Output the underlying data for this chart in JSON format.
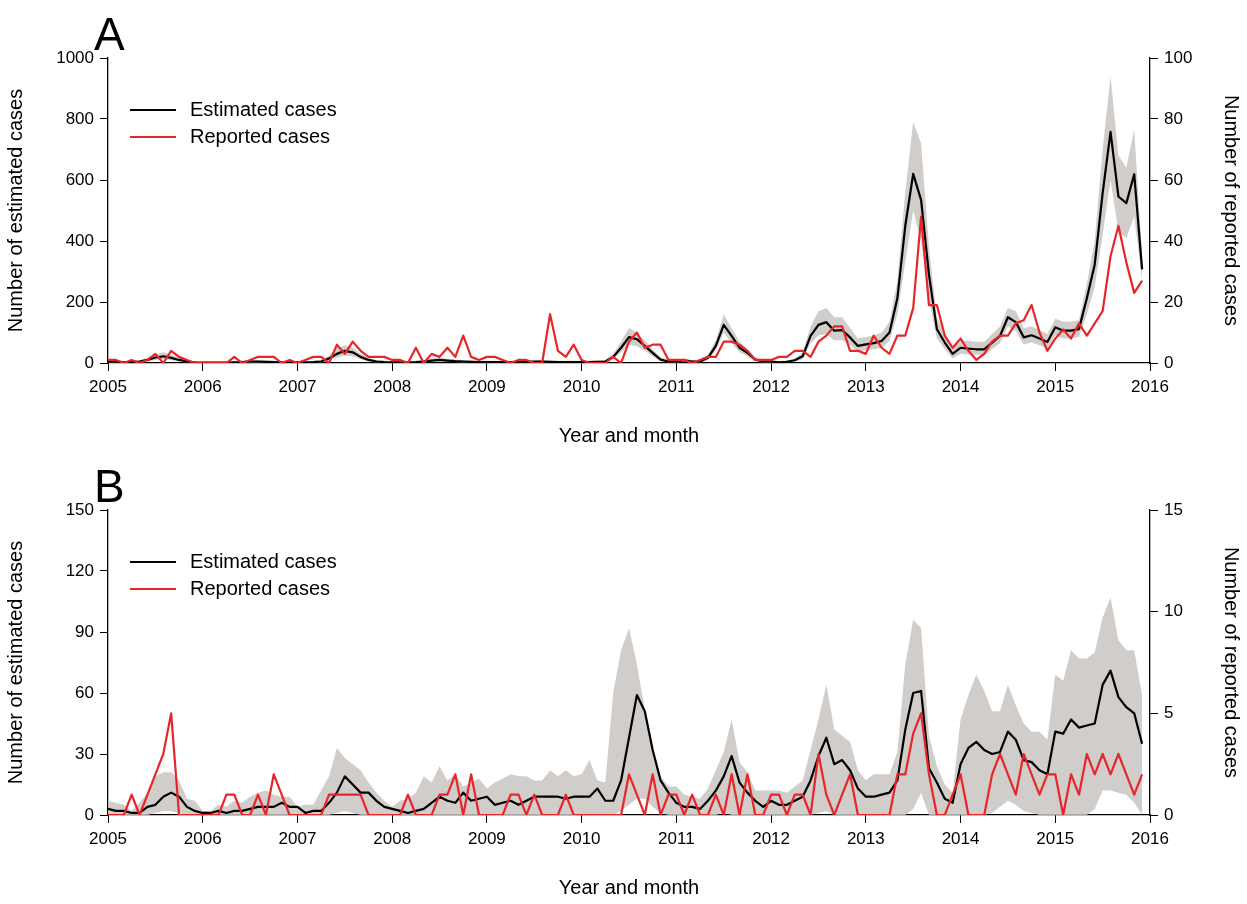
{
  "chart_data": [
    {
      "type": "line",
      "title": "A",
      "xlabel": "Year and month",
      "ylabel": "Number of estimated cases",
      "y2label": "Number of reported cases",
      "legend": "top left",
      "grid": false,
      "xlim": [
        "2005",
        "2016"
      ],
      "xticks": [
        "2005",
        "2006",
        "2007",
        "2008",
        "2009",
        "2010",
        "2011",
        "2012",
        "2013",
        "2014",
        "2015",
        "2016"
      ],
      "ylim": [
        0,
        1000
      ],
      "yticks": [
        0,
        200,
        400,
        600,
        800,
        1000
      ],
      "y2lim": [
        0,
        100
      ],
      "y2ticks": [
        0,
        20,
        40,
        60,
        80,
        100
      ],
      "x": [
        "2005-01",
        "2005-02",
        "2005-03",
        "2005-04",
        "2005-05",
        "2005-06",
        "2005-07",
        "2005-08",
        "2005-09",
        "2005-10",
        "2005-11",
        "2005-12",
        "2006-01",
        "2006-02",
        "2006-03",
        "2006-04",
        "2006-05",
        "2006-06",
        "2006-07",
        "2006-08",
        "2006-09",
        "2006-10",
        "2006-11",
        "2006-12",
        "2007-01",
        "2007-02",
        "2007-03",
        "2007-04",
        "2007-05",
        "2007-06",
        "2007-07",
        "2007-08",
        "2007-09",
        "2007-10",
        "2007-11",
        "2007-12",
        "2008-01",
        "2008-02",
        "2008-03",
        "2008-04",
        "2008-05",
        "2008-06",
        "2008-07",
        "2008-08",
        "2008-09",
        "2008-10",
        "2008-11",
        "2008-12",
        "2009-01",
        "2009-02",
        "2009-03",
        "2009-04",
        "2009-05",
        "2009-06",
        "2009-07",
        "2009-08",
        "2009-09",
        "2009-10",
        "2009-11",
        "2009-12",
        "2010-01",
        "2010-02",
        "2010-03",
        "2010-04",
        "2010-05",
        "2010-06",
        "2010-07",
        "2010-08",
        "2010-09",
        "2010-10",
        "2010-11",
        "2010-12",
        "2011-01",
        "2011-02",
        "2011-03",
        "2011-04",
        "2011-05",
        "2011-06",
        "2011-07",
        "2011-08",
        "2011-09",
        "2011-10",
        "2011-11",
        "2011-12",
        "2012-01",
        "2012-02",
        "2012-03",
        "2012-04",
        "2012-05",
        "2012-06",
        "2012-07",
        "2012-08",
        "2012-09",
        "2012-10",
        "2012-11",
        "2012-12",
        "2013-01",
        "2013-02",
        "2013-03",
        "2013-04",
        "2013-05",
        "2013-06",
        "2013-07",
        "2013-08",
        "2013-09",
        "2013-10",
        "2013-11",
        "2013-12",
        "2014-01",
        "2014-02",
        "2014-03",
        "2014-04",
        "2014-05",
        "2014-06",
        "2014-07",
        "2014-08",
        "2014-09",
        "2014-10",
        "2014-11",
        "2014-12",
        "2015-01",
        "2015-02",
        "2015-03",
        "2015-04",
        "2015-05",
        "2015-06",
        "2015-07",
        "2015-08",
        "2015-09",
        "2015-10",
        "2015-11",
        "2015-12"
      ],
      "series": [
        {
          "name": "Estimated cases",
          "color": "#000000",
          "values": [
            5,
            5,
            2,
            3,
            5,
            10,
            18,
            22,
            17,
            10,
            5,
            2,
            1,
            1,
            1,
            1,
            2,
            3,
            5,
            5,
            4,
            3,
            2,
            2,
            2,
            2,
            3,
            5,
            15,
            30,
            40,
            35,
            20,
            10,
            5,
            3,
            2,
            2,
            2,
            3,
            5,
            8,
            10,
            8,
            6,
            5,
            4,
            3,
            3,
            3,
            3,
            3,
            3,
            4,
            5,
            5,
            4,
            3,
            3,
            3,
            3,
            3,
            4,
            5,
            20,
            50,
            85,
            78,
            56,
            33,
            11,
            5,
            5,
            9,
            5,
            5,
            17,
            56,
            125,
            89,
            50,
            33,
            11,
            5,
            5,
            2,
            4,
            9,
            22,
            89,
            125,
            134,
            106,
            108,
            84,
            56,
            61,
            65,
            72,
            100,
            212,
            450,
            620,
            535,
            290,
            111,
            67,
            30,
            50,
            47,
            45,
            45,
            67,
            89,
            150,
            134,
            84,
            91,
            80,
            69,
            117,
            106,
            106,
            111,
            212,
            323,
            557,
            758,
            546,
            524,
            619,
            307
          ],
          "lower": [
            2,
            2,
            0,
            1,
            2,
            5,
            10,
            12,
            9,
            5,
            2,
            0,
            0,
            0,
            0,
            0,
            0,
            1,
            2,
            2,
            2,
            1,
            0,
            0,
            0,
            0,
            1,
            2,
            8,
            18,
            25,
            22,
            12,
            5,
            2,
            1,
            0,
            0,
            0,
            1,
            2,
            4,
            5,
            4,
            3,
            2,
            2,
            1,
            1,
            1,
            1,
            1,
            1,
            2,
            2,
            2,
            2,
            1,
            1,
            1,
            1,
            1,
            2,
            2,
            12,
            35,
            60,
            55,
            40,
            22,
            6,
            2,
            2,
            4,
            2,
            2,
            10,
            40,
            100,
            65,
            35,
            22,
            6,
            2,
            2,
            0,
            2,
            5,
            12,
            65,
            90,
            95,
            75,
            75,
            60,
            38,
            42,
            45,
            50,
            72,
            160,
            330,
            500,
            400,
            210,
            80,
            45,
            15,
            30,
            28,
            27,
            27,
            45,
            65,
            120,
            105,
            60,
            68,
            58,
            48,
            90,
            80,
            80,
            85,
            160,
            250,
            420,
            600,
            430,
            410,
            480,
            270
          ],
          "upper": [
            10,
            10,
            6,
            8,
            10,
            16,
            28,
            35,
            28,
            16,
            10,
            5,
            4,
            4,
            4,
            4,
            6,
            8,
            10,
            10,
            8,
            7,
            5,
            5,
            5,
            5,
            7,
            10,
            25,
            48,
            58,
            50,
            30,
            16,
            10,
            7,
            5,
            5,
            5,
            7,
            10,
            14,
            16,
            14,
            11,
            10,
            8,
            7,
            7,
            7,
            7,
            7,
            7,
            8,
            9,
            9,
            8,
            7,
            7,
            7,
            7,
            7,
            8,
            10,
            30,
            70,
            115,
            100,
            75,
            45,
            18,
            10,
            10,
            15,
            10,
            10,
            28,
            75,
            160,
            115,
            70,
            45,
            18,
            10,
            10,
            6,
            8,
            15,
            35,
            120,
            170,
            180,
            150,
            150,
            115,
            80,
            85,
            90,
            100,
            135,
            270,
            560,
            790,
            720,
            380,
            150,
            95,
            50,
            75,
            72,
            70,
            70,
            95,
            120,
            180,
            170,
            115,
            120,
            108,
            95,
            145,
            135,
            135,
            140,
            260,
            400,
            700,
            940,
            680,
            640,
            765,
            350
          ]
        },
        {
          "name": "Reported cases",
          "color": "#e8262a",
          "axis": "y2",
          "values": [
            1,
            1,
            0,
            1,
            0,
            1,
            3,
            0,
            4,
            2,
            1,
            0,
            0,
            0,
            0,
            0,
            2,
            0,
            1,
            2,
            2,
            2,
            0,
            1,
            0,
            1,
            2,
            2,
            0,
            6,
            3,
            7,
            4,
            2,
            2,
            2,
            1,
            1,
            0,
            5,
            0,
            3,
            2,
            5,
            2,
            9,
            2,
            1,
            2,
            2,
            1,
            0,
            1,
            1,
            0,
            0,
            16,
            4,
            2,
            6,
            1,
            0,
            0,
            0,
            2,
            0,
            7,
            10,
            5,
            6,
            6,
            1,
            1,
            1,
            0,
            1,
            2,
            2,
            7,
            7,
            6,
            4,
            1,
            1,
            1,
            2,
            2,
            4,
            4,
            2,
            7,
            9,
            12,
            12,
            4,
            4,
            3,
            9,
            5,
            3,
            9,
            9,
            18,
            48,
            19,
            19,
            9,
            5,
            8,
            4,
            1,
            3,
            7,
            9,
            9,
            13,
            14,
            19,
            10,
            4,
            8,
            11,
            8,
            13,
            9,
            13,
            17,
            35,
            45,
            33,
            23,
            27
          ]
        }
      ]
    },
    {
      "type": "line",
      "title": "B",
      "xlabel": "Year and month",
      "ylabel": "Number of estimated cases",
      "y2label": "Number of reported cases",
      "legend": "top left",
      "grid": false,
      "xlim": [
        "2005",
        "2016"
      ],
      "xticks": [
        "2005",
        "2006",
        "2007",
        "2008",
        "2009",
        "2010",
        "2011",
        "2012",
        "2013",
        "2014",
        "2015",
        "2016"
      ],
      "ylim": [
        0,
        150
      ],
      "yticks": [
        0,
        30,
        60,
        90,
        120,
        150
      ],
      "y2lim": [
        0,
        15
      ],
      "y2ticks": [
        0,
        5,
        10,
        15
      ],
      "x": [
        "2005-01",
        "2005-02",
        "2005-03",
        "2005-04",
        "2005-05",
        "2005-06",
        "2005-07",
        "2005-08",
        "2005-09",
        "2005-10",
        "2005-11",
        "2005-12",
        "2006-01",
        "2006-02",
        "2006-03",
        "2006-04",
        "2006-05",
        "2006-06",
        "2006-07",
        "2006-08",
        "2006-09",
        "2006-10",
        "2006-11",
        "2006-12",
        "2007-01",
        "2007-02",
        "2007-03",
        "2007-04",
        "2007-05",
        "2007-06",
        "2007-07",
        "2007-08",
        "2007-09",
        "2007-10",
        "2007-11",
        "2007-12",
        "2008-01",
        "2008-02",
        "2008-03",
        "2008-04",
        "2008-05",
        "2008-06",
        "2008-07",
        "2008-08",
        "2008-09",
        "2008-10",
        "2008-11",
        "2008-12",
        "2009-01",
        "2009-02",
        "2009-03",
        "2009-04",
        "2009-05",
        "2009-06",
        "2009-07",
        "2009-08",
        "2009-09",
        "2009-10",
        "2009-11",
        "2009-12",
        "2010-01",
        "2010-02",
        "2010-03",
        "2010-04",
        "2010-05",
        "2010-06",
        "2010-07",
        "2010-08",
        "2010-09",
        "2010-10",
        "2010-11",
        "2010-12",
        "2011-01",
        "2011-02",
        "2011-03",
        "2011-04",
        "2011-05",
        "2011-06",
        "2011-07",
        "2011-08",
        "2011-09",
        "2011-10",
        "2011-11",
        "2011-12",
        "2012-01",
        "2012-02",
        "2012-03",
        "2012-04",
        "2012-05",
        "2012-06",
        "2012-07",
        "2012-08",
        "2012-09",
        "2012-10",
        "2012-11",
        "2012-12",
        "2013-01",
        "2013-02",
        "2013-03",
        "2013-04",
        "2013-05",
        "2013-06",
        "2013-07",
        "2013-08",
        "2013-09",
        "2013-10",
        "2013-11",
        "2013-12",
        "2014-01",
        "2014-02",
        "2014-03",
        "2014-04",
        "2014-05",
        "2014-06",
        "2014-07",
        "2014-08",
        "2014-09",
        "2014-10",
        "2014-11",
        "2014-12",
        "2015-01",
        "2015-02",
        "2015-03",
        "2015-04",
        "2015-05",
        "2015-06",
        "2015-07",
        "2015-08",
        "2015-09",
        "2015-10",
        "2015-11",
        "2015-12"
      ],
      "series": [
        {
          "name": "Estimated cases",
          "color": "#000000",
          "values": [
            3,
            2,
            2,
            1,
            1,
            4,
            5,
            9,
            11,
            9,
            4,
            2,
            1,
            1,
            2,
            1,
            2,
            2,
            3,
            4,
            4,
            4,
            6,
            4,
            4,
            1,
            2,
            2,
            6,
            11,
            19,
            15,
            11,
            11,
            7,
            4,
            3,
            2,
            1,
            2,
            3,
            6,
            9,
            7,
            6,
            11,
            7,
            8,
            9,
            5,
            6,
            7,
            5,
            7,
            9,
            9,
            9,
            9,
            8,
            9,
            9,
            9,
            13,
            7,
            7,
            17,
            38,
            59,
            51,
            32,
            17,
            11,
            6,
            4,
            4,
            3,
            7,
            12,
            19,
            29,
            16,
            11,
            7,
            4,
            7,
            5,
            5,
            7,
            9,
            17,
            29,
            38,
            25,
            27,
            22,
            13,
            9,
            9,
            10,
            11,
            17,
            42,
            60,
            61,
            23,
            16,
            8,
            6,
            25,
            33,
            36,
            32,
            30,
            31,
            41,
            37,
            27,
            26,
            22,
            20,
            41,
            40,
            47,
            43,
            44,
            45,
            64,
            71,
            58,
            53,
            50,
            35
          ],
          "lower": [
            0,
            0,
            0,
            0,
            0,
            0,
            1,
            2,
            2,
            1,
            0,
            0,
            0,
            0,
            0,
            0,
            0,
            0,
            0,
            0,
            0,
            0,
            0,
            0,
            0,
            0,
            0,
            0,
            0,
            1,
            2,
            1,
            0,
            0,
            0,
            0,
            0,
            0,
            0,
            0,
            0,
            0,
            0,
            0,
            0,
            0,
            0,
            0,
            0,
            0,
            0,
            0,
            0,
            0,
            0,
            0,
            0,
            0,
            0,
            0,
            0,
            0,
            0,
            0,
            0,
            2,
            5,
            8,
            8,
            4,
            1,
            0,
            0,
            0,
            0,
            0,
            0,
            0,
            1,
            0,
            0,
            0,
            0,
            0,
            0,
            0,
            0,
            0,
            0,
            0,
            1,
            2,
            0,
            0,
            0,
            0,
            0,
            0,
            0,
            0,
            0,
            0,
            3,
            11,
            0,
            0,
            0,
            0,
            0,
            0,
            0,
            0,
            1,
            4,
            7,
            5,
            2,
            1,
            0,
            0,
            0,
            0,
            0,
            0,
            0,
            3,
            12,
            12,
            11,
            10,
            6,
            0
          ],
          "upper": [
            7,
            6,
            5,
            2,
            6,
            11,
            19,
            21,
            21,
            17,
            8,
            7,
            2,
            2,
            5,
            4,
            7,
            6,
            9,
            11,
            12,
            10,
            9,
            9,
            4,
            5,
            5,
            12,
            19,
            33,
            28,
            25,
            22,
            16,
            11,
            7,
            4,
            7,
            8,
            11,
            19,
            16,
            24,
            17,
            20,
            14,
            16,
            18,
            13,
            16,
            18,
            20,
            19,
            19,
            17,
            17,
            22,
            19,
            22,
            19,
            20,
            27,
            17,
            16,
            60,
            81,
            92,
            74,
            52,
            32,
            19,
            14,
            14,
            10,
            9,
            8,
            13,
            22,
            31,
            47,
            26,
            21,
            12,
            12,
            12,
            12,
            11,
            14,
            17,
            32,
            47,
            64,
            42,
            39,
            36,
            22,
            17,
            20,
            20,
            20,
            31,
            74,
            96,
            92,
            39,
            24,
            15,
            11,
            47,
            59,
            69,
            61,
            51,
            51,
            64,
            54,
            45,
            41,
            41,
            37,
            69,
            66,
            81,
            77,
            77,
            80,
            97,
            107,
            86,
            81,
            81,
            59
          ]
        },
        {
          "name": "Reported cases",
          "color": "#e8262a",
          "axis": "y2",
          "values": [
            0,
            0,
            0,
            1,
            0,
            1,
            2,
            3,
            5,
            0,
            0,
            0,
            0,
            0,
            0,
            1,
            1,
            0,
            0,
            1,
            0,
            2,
            1,
            0,
            0,
            0,
            0,
            0,
            1,
            1,
            1,
            1,
            1,
            0,
            0,
            0,
            0,
            0,
            1,
            0,
            0,
            0,
            1,
            1,
            2,
            0,
            2,
            0,
            0,
            0,
            0,
            1,
            1,
            0,
            1,
            0,
            0,
            0,
            1,
            0,
            0,
            0,
            0,
            0,
            0,
            0,
            2,
            1,
            0,
            2,
            0,
            1,
            1,
            0,
            1,
            0,
            0,
            1,
            0,
            2,
            0,
            2,
            0,
            0,
            1,
            1,
            0,
            1,
            1,
            0,
            3,
            1,
            0,
            1,
            2,
            0,
            0,
            0,
            0,
            0,
            2,
            2,
            4,
            5,
            2,
            0,
            0,
            1,
            2,
            0,
            0,
            0,
            2,
            3,
            2,
            1,
            3,
            2,
            1,
            2,
            2,
            0,
            2,
            1,
            3,
            2,
            3,
            2,
            3,
            2,
            1,
            2
          ]
        }
      ]
    }
  ]
}
